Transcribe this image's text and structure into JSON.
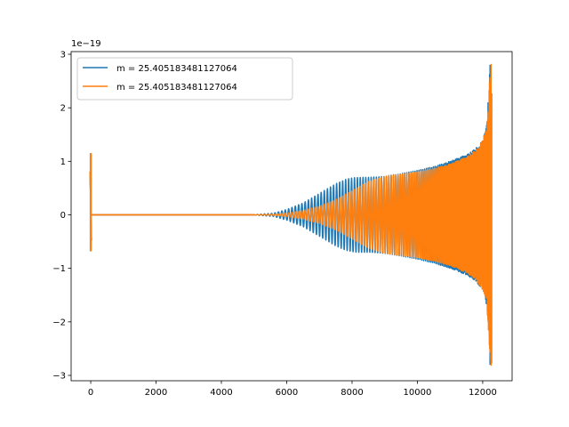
{
  "chart_data": {
    "type": "line",
    "title": "",
    "xlabel": "",
    "ylabel": "",
    "xlim": [
      -600,
      12900
    ],
    "ylim": [
      -3.1e-19,
      3.05e-19
    ],
    "y_offset_text": "1e−19",
    "xticks": [
      0,
      2000,
      4000,
      6000,
      8000,
      10000,
      12000
    ],
    "xtick_labels": [
      "0",
      "2000",
      "4000",
      "6000",
      "8000",
      "10000",
      "12000"
    ],
    "yticks": [
      -3e-19,
      -2e-19,
      -1e-19,
      0,
      1e-19,
      2e-19,
      3e-19
    ],
    "ytick_labels": [
      "−3",
      "−2",
      "−1",
      "0",
      "1",
      "2",
      "3"
    ],
    "grid": false,
    "legend_position": "top-left",
    "series": [
      {
        "name": "m = 25.405183481127064",
        "color": "#1f77b4",
        "kind": "oscillation",
        "x_end": 12250,
        "initial_burst": {
          "x": 0,
          "max": 1.15e-19,
          "min": -6.8e-20
        },
        "amplitude_envelope": {
          "x": [
            0,
            100,
            4000,
            5000,
            5600,
            6000,
            6500,
            7000,
            7500,
            7800,
            8000,
            8200,
            8500,
            9000,
            9500,
            10000,
            10500,
            11000,
            11500,
            11800,
            12000,
            12100,
            12150,
            12200,
            12250
          ],
          "amp": [
            0,
            0,
            0,
            3e-22,
            3e-21,
            1e-20,
            2.2e-20,
            4e-20,
            5.8e-20,
            6.6e-20,
            6.9e-20,
            7e-20,
            7e-20,
            7.2e-20,
            7.7e-20,
            8.3e-20,
            9e-20,
            1e-19,
            1.12e-19,
            1.25e-19,
            1.4e-19,
            1.6e-19,
            1.9e-19,
            2.6e-19,
            2.8e-19
          ]
        },
        "period_samples": {
          "x": [
            5000,
            8000,
            10000,
            12000,
            12250
          ],
          "period": [
            110,
            90,
            60,
            25,
            8
          ]
        }
      },
      {
        "name": "m = 25.405183481127064",
        "color": "#ff7f0e",
        "kind": "oscillation",
        "x_end": 12280,
        "initial_burst": {
          "x": 0,
          "max": 1.15e-19,
          "min": -6.8e-20
        },
        "amplitude_envelope": {
          "x": [
            0,
            100,
            4000,
            5000,
            5600,
            6000,
            6500,
            7000,
            7500,
            8000,
            8500,
            9000,
            9500,
            10000,
            10500,
            11000,
            11500,
            11800,
            12000,
            12100,
            12150,
            12200,
            12250,
            12280
          ],
          "amp": [
            0,
            0,
            0,
            2e-22,
            1e-21,
            3e-21,
            8e-21,
            1.6e-20,
            2.8e-20,
            4.5e-20,
            6.2e-20,
            7.2e-20,
            7.6e-20,
            8e-20,
            8.6e-20,
            9.5e-20,
            1.08e-19,
            1.22e-19,
            1.4e-19,
            1.6e-19,
            1.9e-19,
            2.4e-19,
            2.78e-19,
            2.82e-19
          ]
        },
        "period_samples": {
          "x": [
            5000,
            8000,
            10000,
            12000,
            12280
          ],
          "period": [
            110,
            90,
            60,
            25,
            8
          ]
        }
      }
    ]
  }
}
